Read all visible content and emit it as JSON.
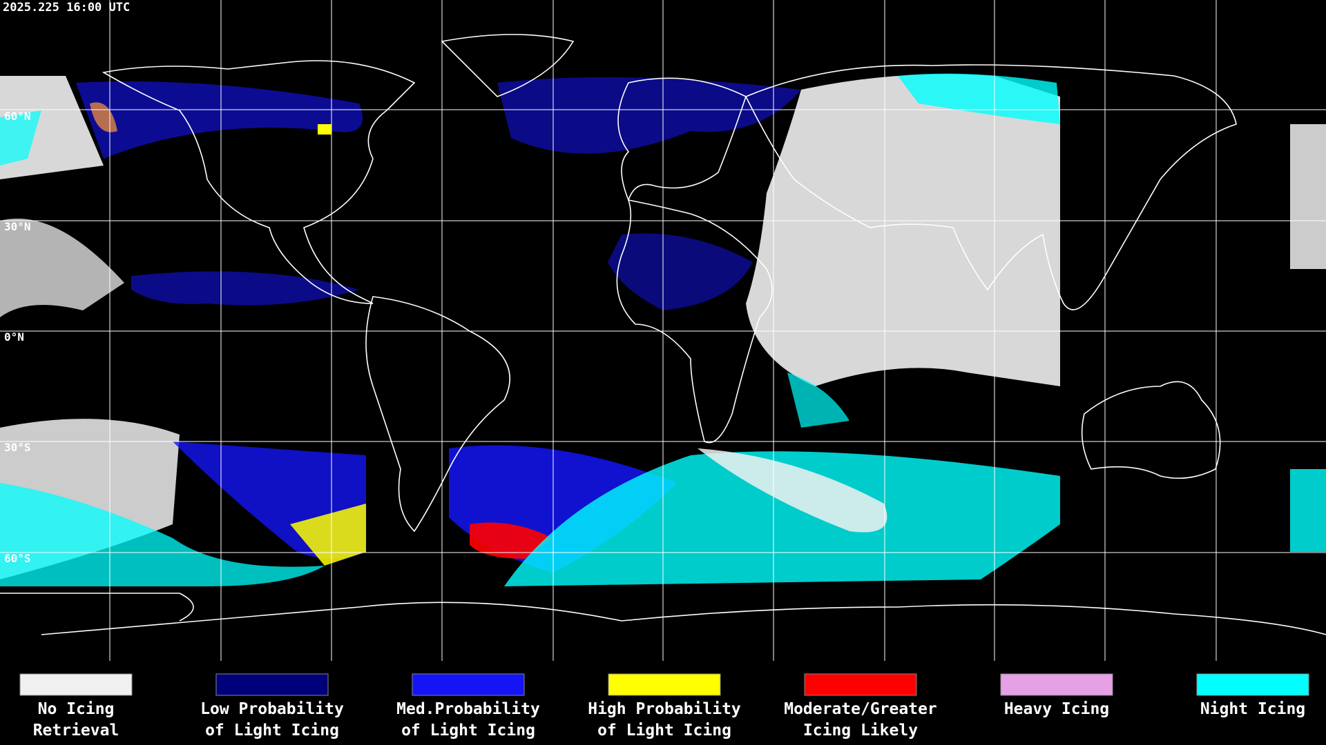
{
  "timestamp": "2025.225 16:00 UTC",
  "latitude_labels": [
    "60°N",
    "30°N",
    "0°N",
    "30°S",
    "60°S"
  ],
  "legend": [
    {
      "label": [
        "No Icing",
        "Retrieval"
      ],
      "color": "#f0f0f0"
    },
    {
      "label": [
        "Low Probability",
        "of Light Icing"
      ],
      "color": "#00007a"
    },
    {
      "label": [
        "Med.Probability",
        "of Light Icing"
      ],
      "color": "#1414f5"
    },
    {
      "label": [
        "High Probability",
        "of Light Icing"
      ],
      "color": "#ffff00"
    },
    {
      "label": [
        "Moderate/Greater",
        "Icing Likely"
      ],
      "color": "#ff0000"
    },
    {
      "label": [
        "Heavy Icing"
      ],
      "color": "#e6a0e6"
    },
    {
      "label": [
        "Night Icing"
      ],
      "color": "#00ffff"
    }
  ]
}
